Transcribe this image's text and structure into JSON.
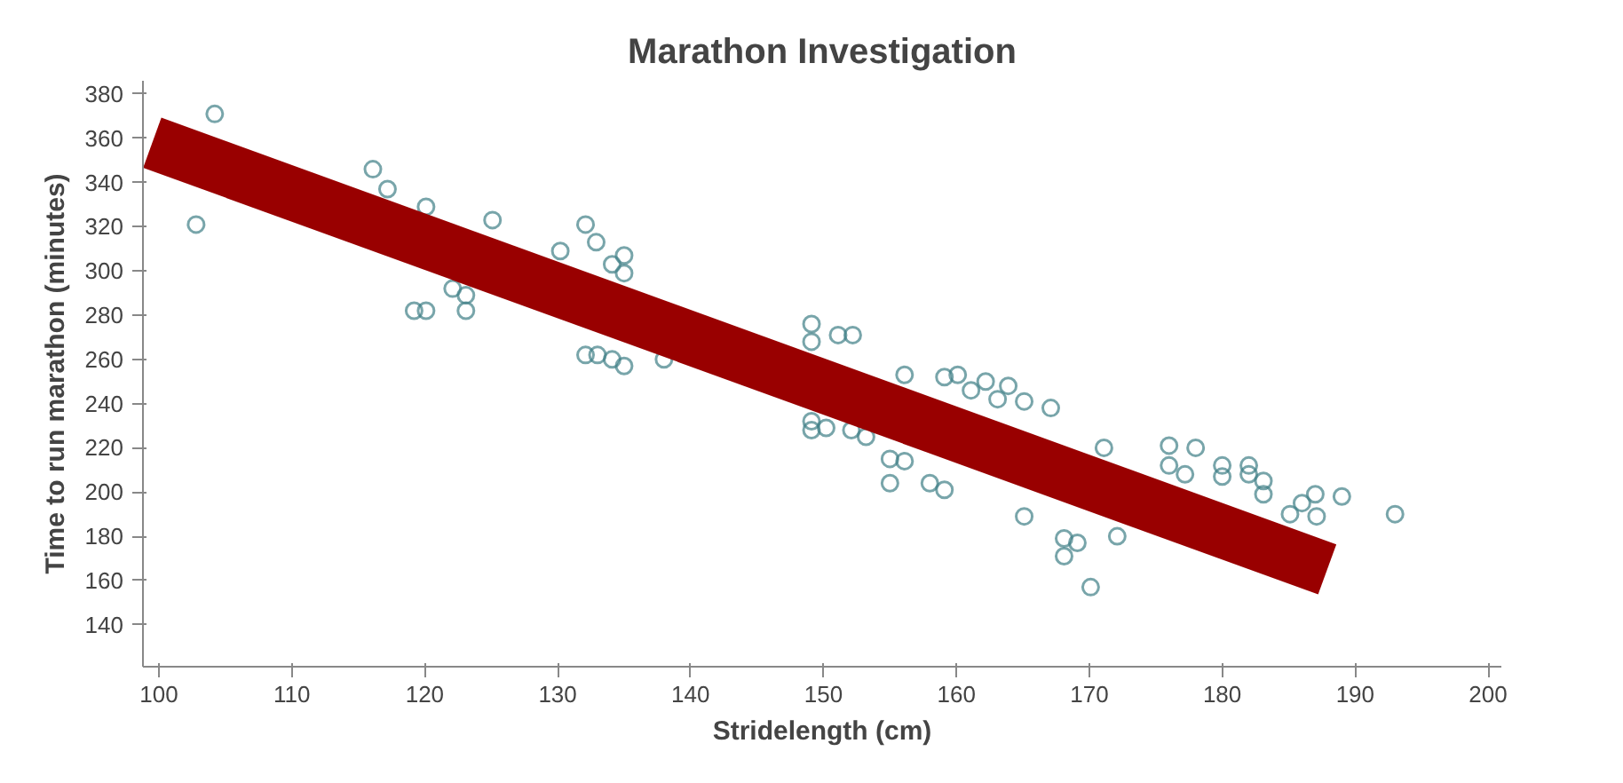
{
  "chart_data": {
    "type": "scatter",
    "title": "Marathon Investigation",
    "xlabel": "Stridelength (cm)",
    "ylabel": "Time to run marathon (minutes)",
    "xlim": [
      98.8,
      201
    ],
    "ylim": [
      121,
      386
    ],
    "xticks": [
      100,
      110,
      120,
      130,
      140,
      150,
      160,
      170,
      180,
      190,
      200
    ],
    "yticks": [
      140,
      160,
      180,
      200,
      220,
      240,
      260,
      280,
      300,
      320,
      340,
      360,
      380
    ],
    "grid": false,
    "marker": "circle",
    "series": [
      {
        "color": "#3f7f86",
        "x": [
          104.2,
          102.8,
          116.1,
          117.2,
          120.1,
          125.1,
          132.1,
          130.2,
          119.2,
          120.1,
          122.1,
          123.1,
          123.1,
          132.1,
          132.9,
          149.1,
          149.1,
          151.1,
          152.2,
          133.0,
          134.1,
          135.0,
          135.0,
          134.1,
          135.0,
          138.0,
          149.1,
          149.1,
          150.2,
          152.1,
          153.2,
          155.0,
          156.1,
          155.0,
          158.0,
          159.1,
          156.1,
          159.1,
          160.1,
          161.1,
          162.2,
          163.1,
          165.1,
          168.1,
          169.1,
          168.1,
          170.1,
          172.1,
          167.1,
          165.1,
          163.9,
          171.1,
          176.0,
          176.0,
          177.2,
          178.0,
          180.0,
          180.0,
          182.0,
          182.0,
          183.1,
          183.1,
          186.0,
          187.0,
          187.1,
          185.1,
          189.0,
          193.0
        ],
        "values": [
          371,
          321,
          346,
          337,
          329,
          323,
          321,
          309,
          282,
          282,
          292,
          289,
          282,
          262,
          313,
          276,
          268,
          271,
          271,
          262,
          260,
          257,
          307,
          303,
          299,
          260,
          232,
          228,
          229,
          228,
          225,
          215,
          214,
          204,
          204,
          201,
          253,
          252,
          253,
          246,
          250,
          242,
          189,
          179,
          177,
          171,
          157,
          180,
          238,
          241,
          248,
          220,
          221,
          212,
          208,
          220,
          212,
          207,
          212,
          208,
          205,
          199,
          195,
          199,
          189,
          190,
          198,
          190
        ]
      },
      {
        "type": "line",
        "marker": "none",
        "color": "#990000",
        "x": [
          99.5,
          187.9
        ],
        "values": [
          358,
          165
        ]
      }
    ]
  }
}
